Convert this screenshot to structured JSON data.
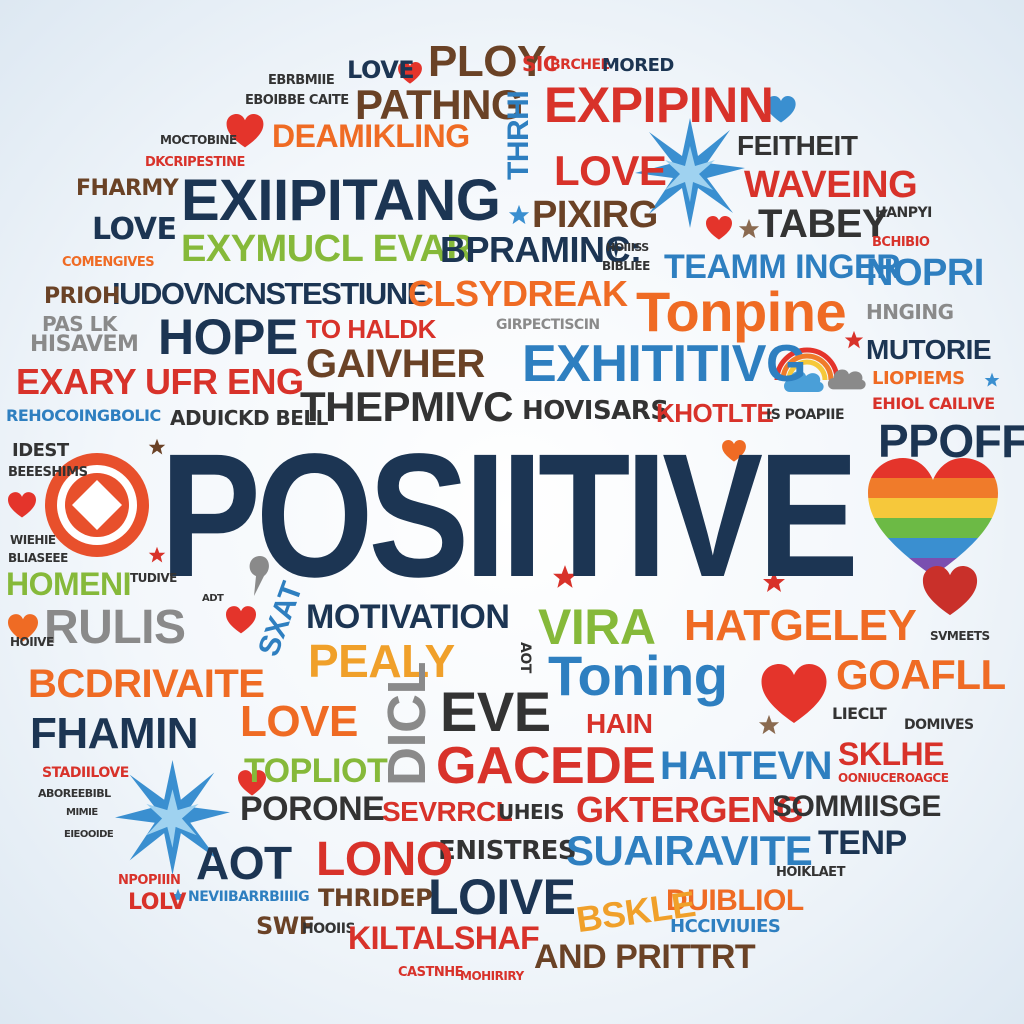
{
  "words": [
    "LOVE",
    "PLOY",
    "SIC",
    "BRCHEE",
    "MORED",
    "EXPIPINN",
    "EBRBMIIE",
    "EBOIBBE CAITE",
    "PATHNG",
    "THRHI",
    "DEAMIKLING",
    "LOVE",
    "FEITHEIT",
    "MOCTOBINE",
    "DKCRIPESTINE",
    "WAVEING",
    "PIXIRG",
    "EXIIPITANG",
    "FHARMY",
    "LOVE",
    "TABEY",
    "HANPYI",
    "EXYMUCL EVAR",
    "BPRAMINC:",
    "HOIIISS",
    "BIBLIEE",
    "TEAMM INGER",
    "BCHIBIO",
    "NOPRI",
    "COMENGIVES",
    "IUDOVNCNSTESTIUNE",
    "CLSYDREAK",
    "Tonpine",
    "PRIOH",
    "PAS LK",
    "HNGING",
    "HOPE",
    "TO HALDK",
    "GIRPECTISCIN",
    "HISAVEM",
    "MUTORIE",
    "GAIVHER",
    "EXHITITIVG",
    "EXARY UFR ENG",
    "LIOPIEMS",
    "EHIOL CAILIVE",
    "REHOCOINGBOLIC",
    "ADUICKD BELL",
    "THEPMIVC",
    "HOVISARS",
    "KHOTLTE",
    "IS POAPIIE",
    "IDEST",
    "PPOFF",
    "BEEESHIMS",
    "POSIITIVE",
    "WIEHIE",
    "BLIASEEE",
    "TUDIVE",
    "HOMENI",
    "ADT",
    "RULIS",
    "SXAT",
    "MOTIVATION",
    "VIRA",
    "HATGELEY",
    "SVMEETS",
    "PEALY",
    "AOT",
    "HOIIVE",
    "BCDRIVAITE",
    "Toning",
    "GOAFLL",
    "LOVE",
    "EVE",
    "DICL",
    "FHAMIN",
    "HAIN",
    "LIECLT",
    "DOMIVES",
    "STADIILOVE",
    "ABOREEBIBL",
    "TOPLIOT",
    "GACEDE",
    "HAITEVN",
    "SKLHE",
    "OONIUCEROAGCE",
    "MIMIE",
    "EIEOOIDE",
    "PORONE",
    "SEVRRCL",
    "UHEIS",
    "GKTERGENG",
    "SOMMIISGE",
    "ENISTRES",
    "SUAIRAVITE",
    "TENP",
    "AOT",
    "LONO",
    "HOIKLAET",
    "NPOPIIIN",
    "NEVIIBARRBIIIIG",
    "LOLV",
    "LOIVE",
    "THRIDEP",
    "DUIBLIOL",
    "BSKLE",
    "HCCIVIUIES",
    "SWF",
    "HOOIIS",
    "KILTALSHAF",
    "AND PRITTRT",
    "CASTNHE",
    "MOHIRIRY"
  ],
  "colors": {
    "navy": "#1c3553",
    "orange": "#ef6b24",
    "red": "#d8322a",
    "brown": "#6a4226",
    "blue": "#2e7fc0",
    "green": "#86b93a",
    "gray": "#8a8a8a",
    "light_blue": "#4a9fd8",
    "background": "#eef4f9"
  },
  "icons": [
    "heart-icon",
    "star-icon",
    "starburst-icon",
    "rainbow-heart-icon",
    "rainbow-icon",
    "cloud-icon",
    "target-icon",
    "sparkle-icon"
  ]
}
